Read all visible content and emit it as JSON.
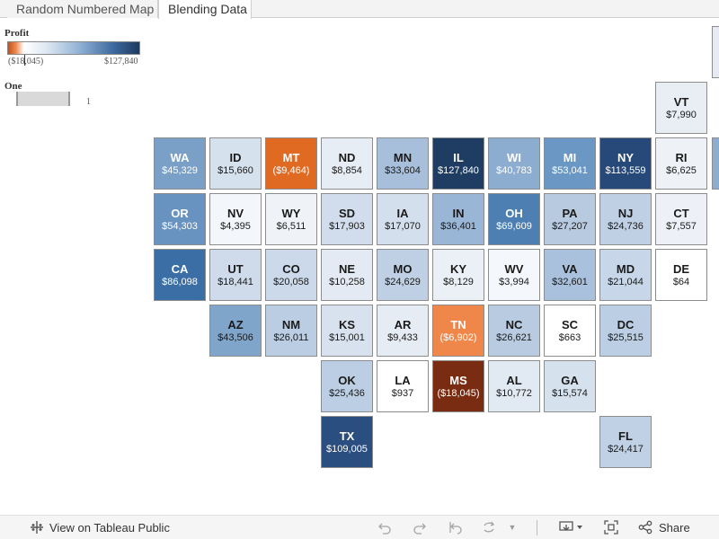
{
  "tabs": [
    {
      "label": "Random Numbered Map",
      "active": false
    },
    {
      "label": "Blending Data",
      "active": true
    }
  ],
  "profit_legend": {
    "title": "Profit",
    "min_label": "($18,045)",
    "max_label": "$127,840",
    "colors": {
      "negative": "#c0511b",
      "zero": "#ffffff",
      "positive": "#1e3a5f"
    }
  },
  "one_legend": {
    "title": "One",
    "value_label": "1"
  },
  "map": {
    "states": [
      {
        "abbr": "VT",
        "value": "$7,990",
        "row": 0,
        "col": 9,
        "color": "#e9eef5",
        "dark": false
      },
      {
        "abbr": "WA",
        "value": "$45,329",
        "row": 1,
        "col": 0,
        "color": "#7aa0c7",
        "dark": true
      },
      {
        "abbr": "ID",
        "value": "$15,660",
        "row": 1,
        "col": 1,
        "color": "#d6e1ee",
        "dark": false
      },
      {
        "abbr": "MT",
        "value": "($9,464)",
        "row": 1,
        "col": 2,
        "color": "#e06a22",
        "dark": true
      },
      {
        "abbr": "ND",
        "value": "$8,854",
        "row": 1,
        "col": 3,
        "color": "#e7edf5",
        "dark": false
      },
      {
        "abbr": "MN",
        "value": "$33,604",
        "row": 1,
        "col": 4,
        "color": "#a7bfda",
        "dark": false
      },
      {
        "abbr": "IL",
        "value": "$127,840",
        "row": 1,
        "col": 5,
        "color": "#1f3d63",
        "dark": true
      },
      {
        "abbr": "WI",
        "value": "$40,783",
        "row": 1,
        "col": 6,
        "color": "#8dadd0",
        "dark": true
      },
      {
        "abbr": "MI",
        "value": "$53,041",
        "row": 1,
        "col": 7,
        "color": "#6a97c4",
        "dark": true
      },
      {
        "abbr": "NY",
        "value": "$113,559",
        "row": 1,
        "col": 8,
        "color": "#27497a",
        "dark": true
      },
      {
        "abbr": "RI",
        "value": "$6,625",
        "row": 1,
        "col": 9,
        "color": "#eef2f7",
        "dark": false
      },
      {
        "abbr": "OR",
        "value": "$54,303",
        "row": 2,
        "col": 0,
        "color": "#6893c1",
        "dark": true
      },
      {
        "abbr": "NV",
        "value": "$4,395",
        "row": 2,
        "col": 1,
        "color": "#f3f6fa",
        "dark": false
      },
      {
        "abbr": "WY",
        "value": "$6,511",
        "row": 2,
        "col": 2,
        "color": "#eff3f8",
        "dark": false
      },
      {
        "abbr": "SD",
        "value": "$17,903",
        "row": 2,
        "col": 3,
        "color": "#d1ddec",
        "dark": false
      },
      {
        "abbr": "IA",
        "value": "$17,070",
        "row": 2,
        "col": 4,
        "color": "#d3dfed",
        "dark": false
      },
      {
        "abbr": "IN",
        "value": "$36,401",
        "row": 2,
        "col": 5,
        "color": "#9ab6d6",
        "dark": false
      },
      {
        "abbr": "OH",
        "value": "$69,609",
        "row": 2,
        "col": 6,
        "color": "#4d7fb3",
        "dark": true
      },
      {
        "abbr": "PA",
        "value": "$27,207",
        "row": 2,
        "col": 7,
        "color": "#b7cae0",
        "dark": false
      },
      {
        "abbr": "NJ",
        "value": "$24,736",
        "row": 2,
        "col": 8,
        "color": "#bfd0e4",
        "dark": false
      },
      {
        "abbr": "CT",
        "value": "$7,557",
        "row": 2,
        "col": 9,
        "color": "#edf1f7",
        "dark": false
      },
      {
        "abbr": "CA",
        "value": "$86,098",
        "row": 3,
        "col": 0,
        "color": "#3a6ea5",
        "dark": true
      },
      {
        "abbr": "UT",
        "value": "$18,441",
        "row": 3,
        "col": 1,
        "color": "#cfdbeb",
        "dark": false
      },
      {
        "abbr": "CO",
        "value": "$20,058",
        "row": 3,
        "col": 2,
        "color": "#cbd9ea",
        "dark": false
      },
      {
        "abbr": "NE",
        "value": "$10,258",
        "row": 3,
        "col": 3,
        "color": "#e3eaf3",
        "dark": false
      },
      {
        "abbr": "MO",
        "value": "$24,629",
        "row": 3,
        "col": 4,
        "color": "#bfd0e4",
        "dark": false
      },
      {
        "abbr": "KY",
        "value": "$8,129",
        "row": 3,
        "col": 5,
        "color": "#eaf0f6",
        "dark": false
      },
      {
        "abbr": "WV",
        "value": "$3,994",
        "row": 3,
        "col": 6,
        "color": "#f4f7fb",
        "dark": false
      },
      {
        "abbr": "VA",
        "value": "$32,601",
        "row": 3,
        "col": 7,
        "color": "#a9c1dc",
        "dark": false
      },
      {
        "abbr": "MD",
        "value": "$21,044",
        "row": 3,
        "col": 8,
        "color": "#c7d6e8",
        "dark": false
      },
      {
        "abbr": "DE",
        "value": "$64",
        "row": 3,
        "col": 9,
        "color": "#ffffff",
        "dark": false
      },
      {
        "abbr": "AZ",
        "value": "$43,506",
        "row": 4,
        "col": 1,
        "color": "#80a5cb",
        "dark": false
      },
      {
        "abbr": "NM",
        "value": "$26,011",
        "row": 4,
        "col": 2,
        "color": "#bbcde2",
        "dark": false
      },
      {
        "abbr": "KS",
        "value": "$15,001",
        "row": 4,
        "col": 3,
        "color": "#d8e2ef",
        "dark": false
      },
      {
        "abbr": "AR",
        "value": "$9,433",
        "row": 4,
        "col": 4,
        "color": "#e5ecf4",
        "dark": false
      },
      {
        "abbr": "TN",
        "value": "($6,902)",
        "row": 4,
        "col": 5,
        "color": "#f0874a",
        "dark": true
      },
      {
        "abbr": "NC",
        "value": "$26,621",
        "row": 4,
        "col": 6,
        "color": "#b9cbe1",
        "dark": false
      },
      {
        "abbr": "SC",
        "value": "$663",
        "row": 4,
        "col": 7,
        "color": "#ffffff",
        "dark": false
      },
      {
        "abbr": "DC",
        "value": "$25,515",
        "row": 4,
        "col": 8,
        "color": "#bccee3",
        "dark": false
      },
      {
        "abbr": "OK",
        "value": "$25,436",
        "row": 5,
        "col": 3,
        "color": "#bccee3",
        "dark": false
      },
      {
        "abbr": "LA",
        "value": "$937",
        "row": 5,
        "col": 4,
        "color": "#ffffff",
        "dark": false
      },
      {
        "abbr": "MS",
        "value": "($18,045)",
        "row": 5,
        "col": 5,
        "color": "#7a2c12",
        "dark": true
      },
      {
        "abbr": "AL",
        "value": "$10,772",
        "row": 5,
        "col": 6,
        "color": "#e1e9f3",
        "dark": false
      },
      {
        "abbr": "GA",
        "value": "$15,574",
        "row": 5,
        "col": 7,
        "color": "#d6e1ee",
        "dark": false
      },
      {
        "abbr": "TX",
        "value": "$109,005",
        "row": 6,
        "col": 3,
        "color": "#2a4e80",
        "dark": true
      },
      {
        "abbr": "FL",
        "value": "$24,417",
        "row": 6,
        "col": 8,
        "color": "#c0d1e5",
        "dark": false
      }
    ]
  },
  "footer": {
    "view_label": "View on Tableau Public",
    "share_label": "Share",
    "icons": [
      "tableau-logo-icon",
      "undo-icon",
      "redo-icon",
      "revert-icon",
      "refresh-icon",
      "pause-dropdown-icon",
      "download-icon",
      "fullscreen-icon",
      "share-icon"
    ]
  }
}
